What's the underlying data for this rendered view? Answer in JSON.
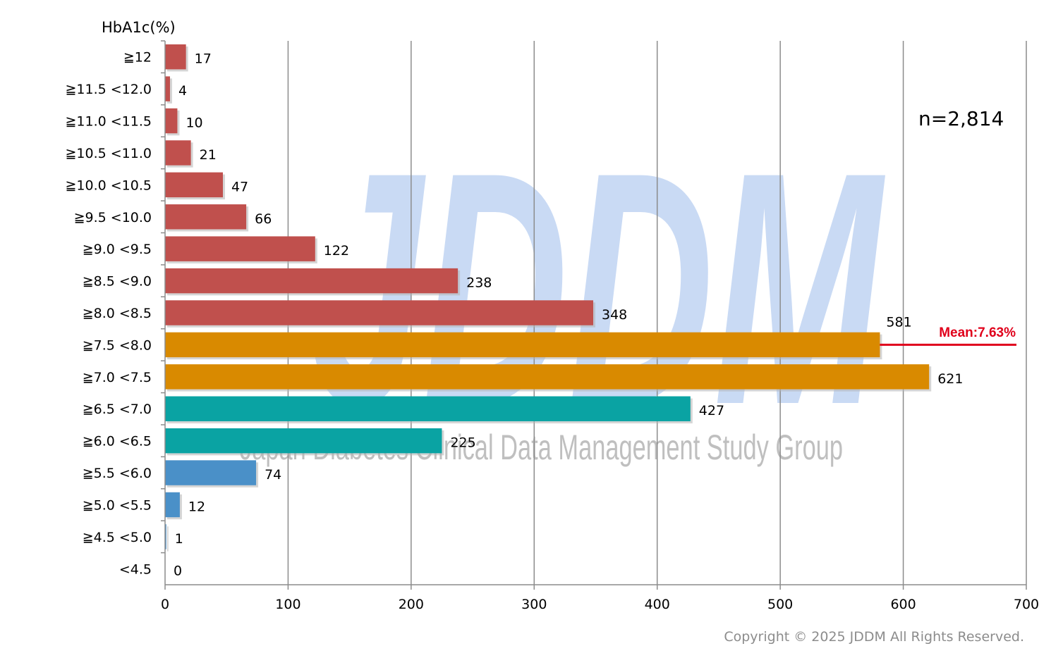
{
  "chart_data": {
    "type": "bar",
    "orientation": "horizontal",
    "title": "",
    "ylabel": "HbA1c(%)",
    "xlabel": "",
    "xlim": [
      0,
      700
    ],
    "xticks": [
      "0",
      "100",
      "200",
      "300",
      "400",
      "500",
      "600",
      "700"
    ],
    "grid": true,
    "categories": [
      "≧12",
      "≧11.5 <12.0",
      "≧11.0 <11.5",
      "≧10.5 <11.0",
      "≧10.0 <10.5",
      "≧9.5 <10.0",
      "≧9.0 <9.5",
      "≧8.5 <9.0",
      "≧8.0 <8.5",
      "≧7.5 <8.0",
      "≧7.0 <7.5",
      "≧6.5 <7.0",
      "≧6.0 <6.5",
      "≧5.5 <6.0",
      "≧5.0 <5.5",
      "≧4.5 <5.0",
      "<4.5"
    ],
    "values": [
      17,
      4,
      10,
      21,
      47,
      66,
      122,
      238,
      348,
      581,
      621,
      427,
      225,
      74,
      12,
      1,
      0
    ],
    "value_labels": [
      "17",
      "4",
      "10",
      "21",
      "47",
      "66",
      "122",
      "238",
      "348",
      "581",
      "621",
      "427",
      "225",
      "74",
      "12",
      "1",
      "0"
    ],
    "bar_colors": [
      "#c0504d",
      "#c0504d",
      "#c0504d",
      "#c0504d",
      "#c0504d",
      "#c0504d",
      "#c0504d",
      "#c0504d",
      "#c0504d",
      "#d98a00",
      "#d98a00",
      "#0aa3a3",
      "#0aa3a3",
      "#4a90c8",
      "#4a90c8",
      "#4a90c8",
      "#4a90c8"
    ],
    "annotations": {
      "n": "n=2,814",
      "mean": "Mean:7.63%",
      "mean_color": "#e0001b"
    }
  },
  "watermark": {
    "logo": "JDDM",
    "subtitle": "Japan Diabetes Clinical Data Management Study Group"
  },
  "copyright": "Copyright © 2025 JDDM All Rights Reserved."
}
